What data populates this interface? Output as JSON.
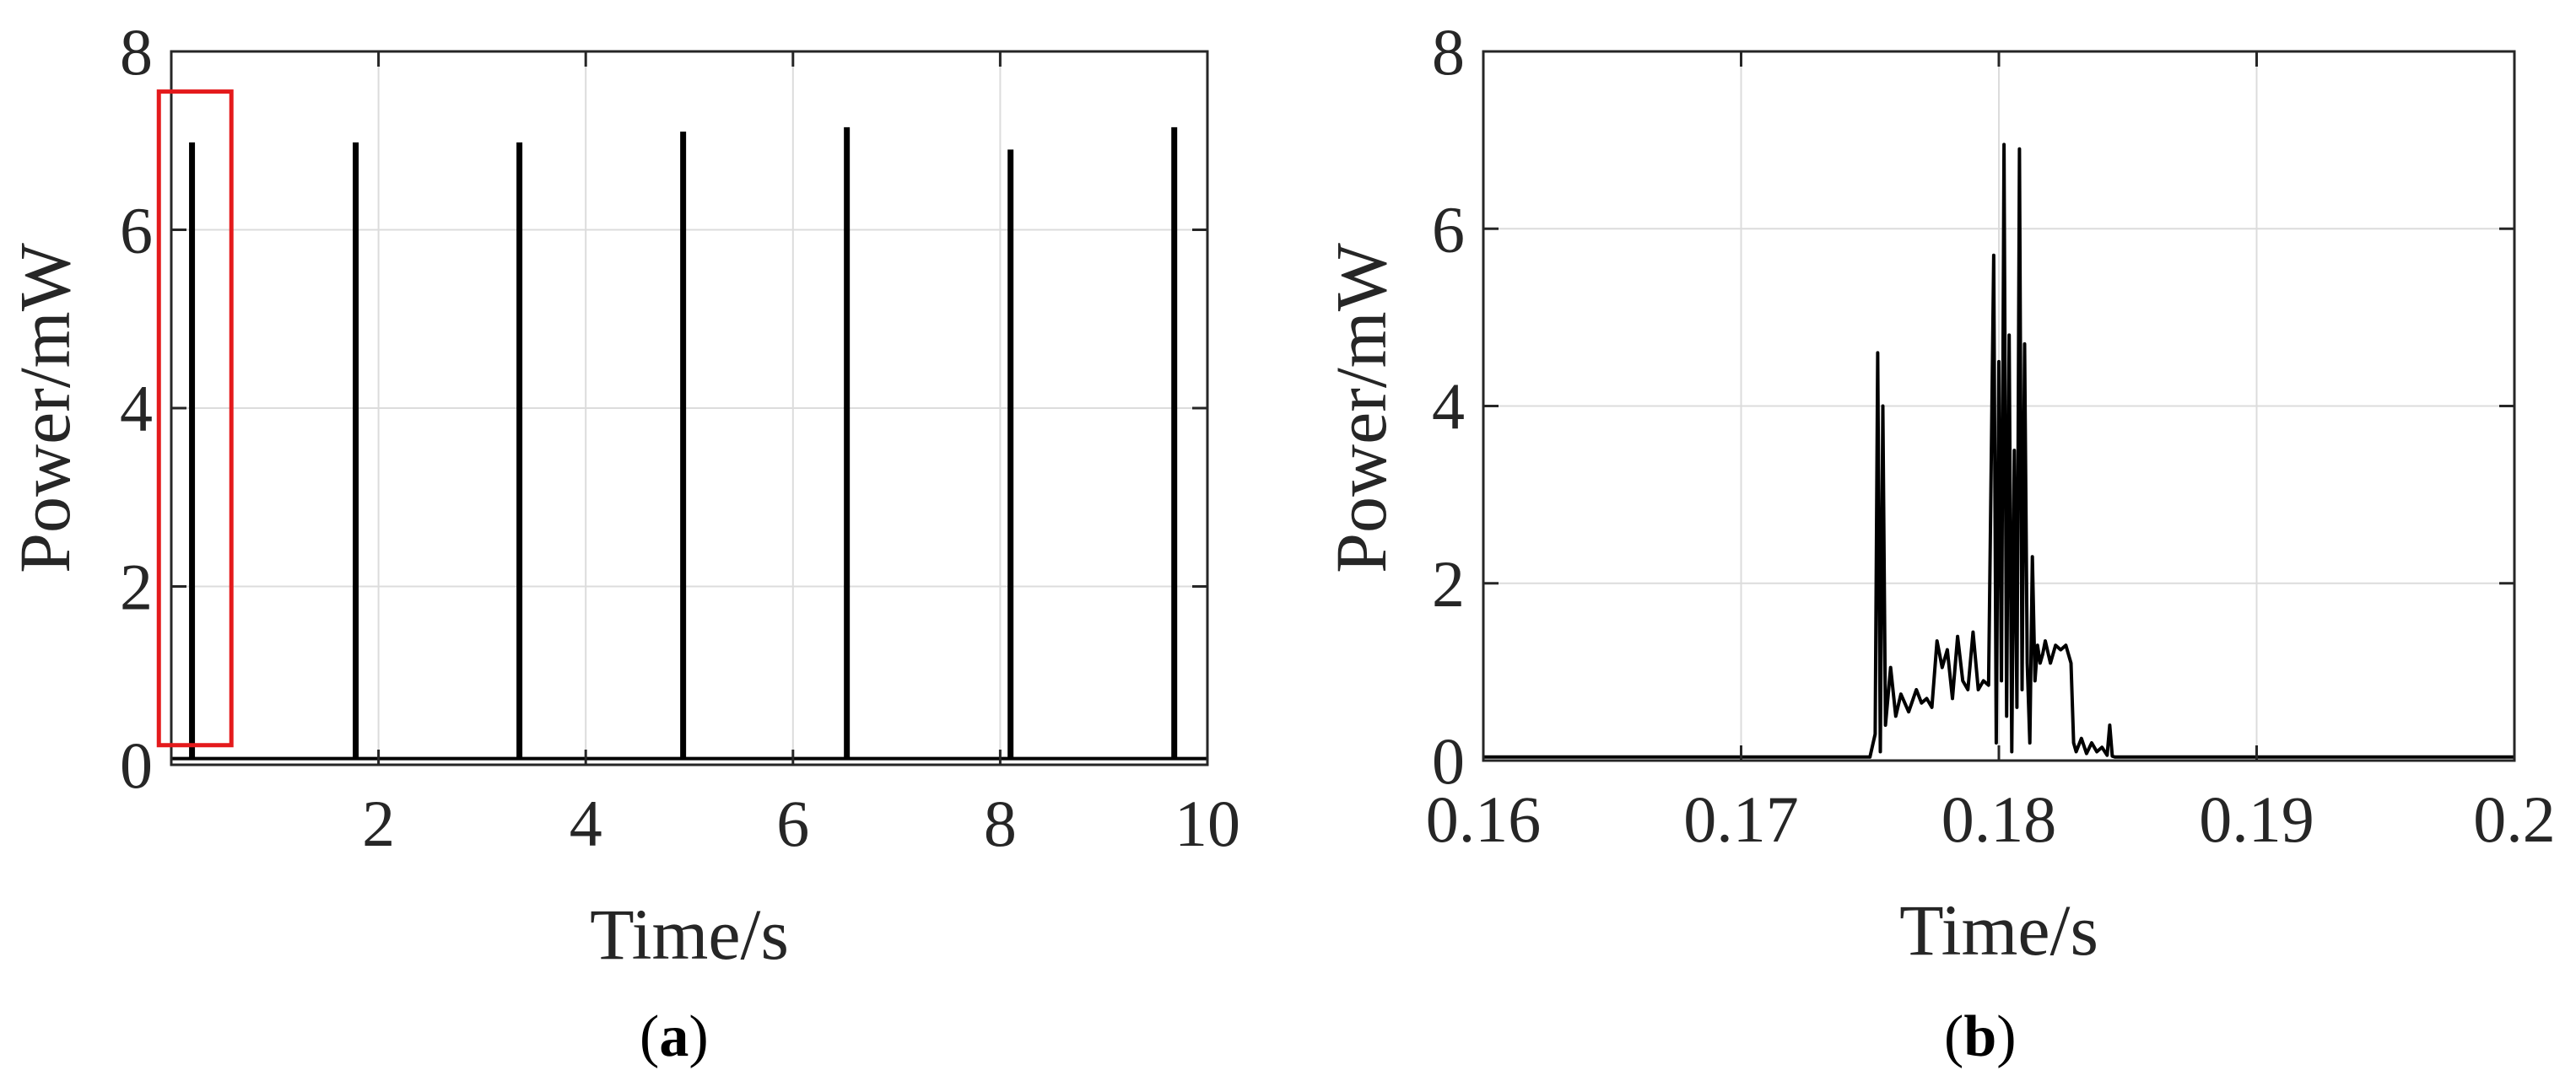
{
  "colors": {
    "trace": "#000000",
    "highlight": "#e41a1c",
    "axis": "#262626",
    "grid": "#dcdcdc"
  },
  "chart_data": [
    {
      "type": "line",
      "panel_label": "a",
      "xlabel": "Time/s",
      "ylabel": "Power/mW",
      "xlim": [
        0,
        10
      ],
      "ylim": [
        0,
        8
      ],
      "xticks": [
        2,
        4,
        6,
        8,
        10
      ],
      "yticks": [
        0,
        2,
        4,
        6,
        8
      ],
      "grid": true,
      "baseline_value": 0.07,
      "spikes": [
        {
          "x": 0.2,
          "peak": 6.98
        },
        {
          "x": 1.78,
          "peak": 6.98
        },
        {
          "x": 3.36,
          "peak": 6.98
        },
        {
          "x": 4.94,
          "peak": 7.1
        },
        {
          "x": 6.52,
          "peak": 7.15
        },
        {
          "x": 8.1,
          "peak": 6.9
        },
        {
          "x": 9.68,
          "peak": 7.15
        }
      ],
      "highlight_box": {
        "x": [
          -0.12,
          0.58
        ],
        "y": [
          0.22,
          7.55
        ]
      }
    },
    {
      "type": "line",
      "panel_label": "b",
      "xlabel": "Time/s",
      "ylabel": "Power/mW",
      "xlim": [
        0.16,
        0.2
      ],
      "ylim": [
        0,
        8
      ],
      "xticks": [
        "0.16",
        "0.17",
        "0.18",
        "0.19",
        "0.2"
      ],
      "yticks": [
        0,
        2,
        4,
        6,
        8
      ],
      "grid": true,
      "x": [
        0.16,
        0.175,
        0.1752,
        0.1753,
        0.1754,
        0.1755,
        0.1756,
        0.1758,
        0.176,
        0.1762,
        0.1765,
        0.1768,
        0.177,
        0.1772,
        0.1774,
        0.1776,
        0.1778,
        0.178,
        0.1782,
        0.1784,
        0.1786,
        0.1788,
        0.179,
        0.1792,
        0.1794,
        0.1796,
        0.1798,
        0.1799,
        0.18,
        0.1801,
        0.1802,
        0.1803,
        0.1804,
        0.1805,
        0.1806,
        0.1807,
        0.1808,
        0.1809,
        0.181,
        0.1811,
        0.1812,
        0.1813,
        0.1814,
        0.1815,
        0.1816,
        0.1817,
        0.1818,
        0.182,
        0.1822,
        0.1824,
        0.1826,
        0.1828,
        0.1829,
        0.183,
        0.1832,
        0.1834,
        0.1836,
        0.1838,
        0.184,
        0.1842,
        0.1843,
        0.1844,
        0.1845,
        0.185,
        0.19,
        0.2
      ],
      "y": [
        0.04,
        0.04,
        0.3,
        4.6,
        0.1,
        4.0,
        0.4,
        1.05,
        0.5,
        0.75,
        0.55,
        0.8,
        0.65,
        0.7,
        0.6,
        1.35,
        1.05,
        1.25,
        0.7,
        1.4,
        0.9,
        0.8,
        1.45,
        0.8,
        0.9,
        0.85,
        5.7,
        0.2,
        4.5,
        0.9,
        6.95,
        0.5,
        4.8,
        0.1,
        3.5,
        0.6,
        6.9,
        0.8,
        4.7,
        1.1,
        0.2,
        2.3,
        0.9,
        1.3,
        1.1,
        1.2,
        1.35,
        1.1,
        1.3,
        1.25,
        1.3,
        1.1,
        0.2,
        0.1,
        0.25,
        0.08,
        0.2,
        0.1,
        0.15,
        0.06,
        0.4,
        0.05,
        0.04,
        0.04,
        0.04,
        0.04
      ]
    }
  ]
}
